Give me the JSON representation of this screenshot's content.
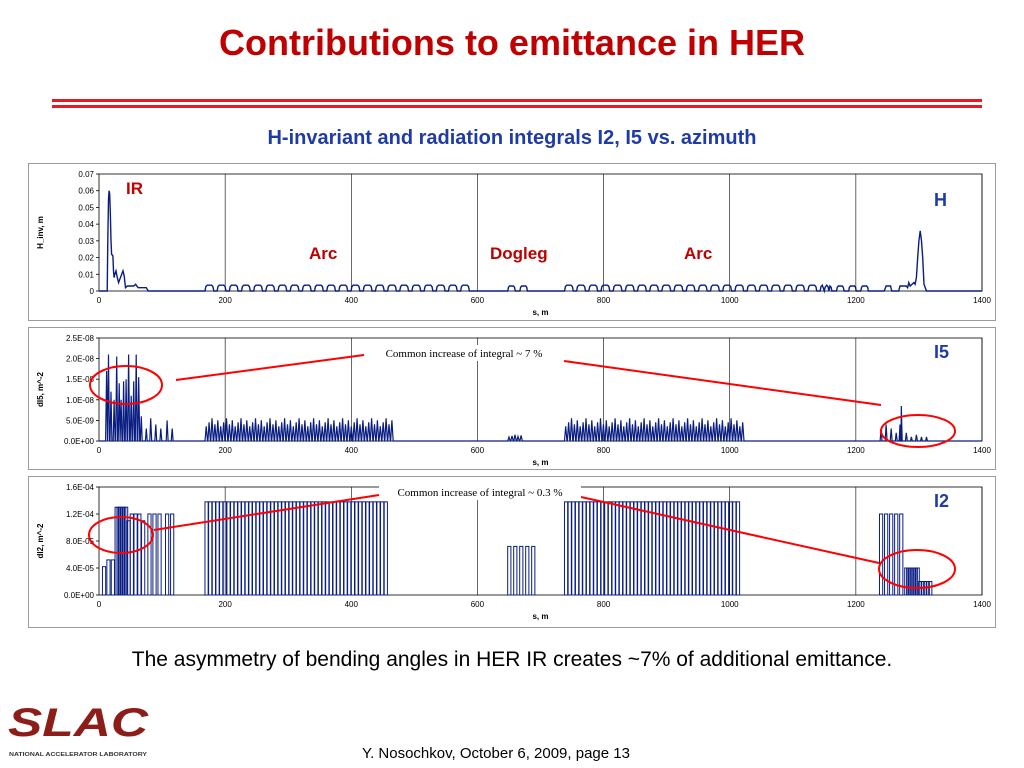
{
  "slide": {
    "title": "Contributions to emittance in HER",
    "subtitle": "H-invariant and radiation integrals I2, I5 vs. azimuth",
    "conclusion": "The asymmetry of bending angles in HER IR creates ~7% of additional emittance.",
    "footer": "Y. Nosochkov, October 6, 2009,  page 13",
    "logo_text": "SLAC",
    "logo_caption": "NATIONAL ACCELERATOR LABORATORY",
    "colors": {
      "title": "#c00000",
      "rule": "#e31b23",
      "subtitle": "#1f3ba8",
      "series": "#0a1e82",
      "annotation": "#ff0000"
    }
  },
  "chart_data": [
    {
      "type": "line",
      "id": "h",
      "xlabel": "s, m",
      "ylabel": "H_inv, m",
      "xlim": [
        0,
        1400
      ],
      "xticks": [
        "0",
        "200",
        "400",
        "600",
        "800",
        "1000",
        "1200",
        "1400"
      ],
      "ylim": [
        0,
        0.07
      ],
      "yticks": [
        "0",
        "0.01",
        "0.02",
        "0.03",
        "0.04",
        "0.05",
        "0.06",
        "0.07"
      ],
      "grid": "vertical",
      "series_label": "H",
      "annotations": [
        "IR",
        "Arc",
        "Dogleg",
        "Arc"
      ],
      "data": {
        "points": [
          [
            0,
            0
          ],
          [
            13,
            0
          ],
          [
            14,
            0.03
          ],
          [
            15,
            0.055
          ],
          [
            16,
            0.06
          ],
          [
            17,
            0.058
          ],
          [
            18,
            0.045
          ],
          [
            19,
            0.03
          ],
          [
            20,
            0.022
          ],
          [
            22,
            0.021
          ],
          [
            23,
            0.012
          ],
          [
            24,
            0.008
          ],
          [
            25,
            0.01
          ],
          [
            27,
            0.012
          ],
          [
            29,
            0.008
          ],
          [
            31,
            0.005
          ],
          [
            33,
            0.007
          ],
          [
            36,
            0.01
          ],
          [
            38,
            0.012
          ],
          [
            40,
            0.009
          ],
          [
            42,
            0.002
          ],
          [
            45,
            0.003
          ],
          [
            55,
            0.003
          ],
          [
            58,
            0.004
          ],
          [
            62,
            0.002
          ],
          [
            68,
            0.002
          ],
          [
            75,
            0.002
          ],
          [
            78,
            0
          ],
          [
            1230,
            0
          ],
          [
            1245,
            0
          ],
          [
            1248,
            0.003
          ],
          [
            1255,
            0.003
          ],
          [
            1257,
            0
          ],
          [
            1268,
            0
          ],
          [
            1270,
            0.003
          ],
          [
            1280,
            0.003
          ],
          [
            1282,
            0.002
          ],
          [
            1284,
            0.005
          ],
          [
            1286,
            0.003
          ],
          [
            1292,
            0.005
          ],
          [
            1294,
            0.004
          ],
          [
            1296,
            0.008
          ],
          [
            1298,
            0.02
          ],
          [
            1300,
            0.03
          ],
          [
            1302,
            0.036
          ],
          [
            1304,
            0.03
          ],
          [
            1306,
            0.02
          ],
          [
            1308,
            0.004
          ],
          [
            1312,
            0
          ],
          [
            1400,
            0
          ]
        ],
        "cells": [
          {
            "start": 168,
            "pitch": 19.3,
            "count": 22,
            "peak": 0.0035,
            "width": 14
          },
          {
            "start": 648,
            "pitch": 19.3,
            "count": 2,
            "peak": 0.003,
            "width": 12
          },
          {
            "start": 738,
            "pitch": 19.3,
            "count": 22,
            "peak": 0.0035,
            "width": 14
          },
          {
            "start": 1150,
            "pitch": 19.3,
            "count": 4,
            "peak": 0.003,
            "width": 12
          }
        ]
      }
    },
    {
      "type": "line",
      "id": "i5",
      "xlabel": "s, m",
      "ylabel": "dI5, m^-2",
      "xlim": [
        0,
        1400
      ],
      "xticks": [
        "0",
        "200",
        "400",
        "600",
        "800",
        "1000",
        "1200",
        "1400"
      ],
      "ylim": [
        0,
        2.5e-08
      ],
      "yticks": [
        "0.0E+00",
        "5.0E-09",
        "1.0E-08",
        "1.5E-08",
        "2.0E-08",
        "2.5E-08"
      ],
      "grid": "vertical",
      "series_label": "I5",
      "annotations": [
        "Common increase of integral ~ 7 %"
      ],
      "data": {
        "spikes": [
          [
            12,
            1.7e-08
          ],
          [
            15,
            2.1e-08
          ],
          [
            19,
            1.2e-08
          ],
          [
            24,
            1e-08
          ],
          [
            28,
            2.05e-08
          ],
          [
            32,
            1.4e-08
          ],
          [
            35,
            1e-08
          ],
          [
            39,
            1.45e-08
          ],
          [
            43,
            1.5e-08
          ],
          [
            47,
            2.1e-08
          ],
          [
            51,
            1.1e-08
          ],
          [
            55,
            1.45e-08
          ],
          [
            59,
            2.1e-08
          ],
          [
            63,
            1.55e-08
          ],
          [
            67,
            6e-09
          ],
          [
            75,
            3e-09
          ],
          [
            82,
            5.5e-09
          ],
          [
            90,
            4e-09
          ],
          [
            98,
            3e-09
          ],
          [
            108,
            5e-09
          ],
          [
            116,
            3e-09
          ],
          [
            1240,
            3e-09
          ],
          [
            1248,
            4e-09
          ],
          [
            1256,
            3e-09
          ],
          [
            1264,
            2e-09
          ],
          [
            1270,
            4e-09
          ],
          [
            1272,
            8.5e-09
          ],
          [
            1280,
            2e-09
          ],
          [
            1288,
            1e-09
          ],
          [
            1296,
            1.5e-09
          ],
          [
            1304,
            1e-09
          ],
          [
            1312,
            1e-09
          ]
        ],
        "cells": [
          {
            "start": 168,
            "pitch": 4.6,
            "count": 65,
            "peak": 5.5e-09,
            "width": 4
          },
          {
            "start": 648,
            "pitch": 4.8,
            "count": 5,
            "peak": 1.5e-09,
            "width": 4
          },
          {
            "start": 738,
            "pitch": 4.6,
            "count": 62,
            "peak": 5.5e-09,
            "width": 4
          }
        ]
      }
    },
    {
      "type": "bar",
      "id": "i2",
      "xlabel": "s, m",
      "ylabel": "dI2, m^-2",
      "xlim": [
        0,
        1400
      ],
      "xticks": [
        "0",
        "200",
        "400",
        "600",
        "800",
        "1000",
        "1200",
        "1400"
      ],
      "ylim": [
        0,
        0.00016
      ],
      "yticks": [
        "0.0E+00",
        "4.0E-05",
        "8.0E-05",
        "1.2E-04",
        "1.6E-04"
      ],
      "grid": "vertical",
      "series_label": "I2",
      "annotations": [
        "Common increase of integral ~ 0.3 %"
      ],
      "data": {
        "bars": [
          [
            8,
            4.2e-05
          ],
          [
            15,
            5.2e-05
          ],
          [
            22,
            5.2e-05
          ],
          [
            28,
            0.00013
          ],
          [
            31,
            0.00013
          ],
          [
            34,
            0.00013
          ],
          [
            37,
            0.00013
          ],
          [
            40,
            0.00013
          ],
          [
            43,
            0.00013
          ],
          [
            47,
            0.00011
          ],
          [
            52,
            0.00012
          ],
          [
            58,
            0.00012
          ],
          [
            64,
            0.00012
          ],
          [
            70,
            0.00011
          ],
          [
            80,
            0.00012
          ],
          [
            88,
            0.00012
          ],
          [
            96,
            0.00012
          ],
          [
            108,
            0.00012
          ],
          [
            116,
            0.00012
          ],
          [
            1240,
            0.00012
          ],
          [
            1248,
            0.00012
          ],
          [
            1256,
            0.00012
          ],
          [
            1264,
            0.00012
          ],
          [
            1272,
            0.00012
          ],
          [
            1280,
            4e-05
          ],
          [
            1283,
            4e-05
          ],
          [
            1286,
            4e-05
          ],
          [
            1289,
            4e-05
          ],
          [
            1292,
            4e-05
          ],
          [
            1295,
            4e-05
          ],
          [
            1298,
            4e-05
          ],
          [
            1302,
            2e-05
          ],
          [
            1306,
            2e-05
          ],
          [
            1310,
            2e-05
          ],
          [
            1314,
            2e-05
          ],
          [
            1318,
            2e-05
          ]
        ],
        "cells": [
          {
            "start": 168,
            "pitch": 5.8,
            "count": 50,
            "peak": 0.000138,
            "width": 3.5
          },
          {
            "start": 648,
            "pitch": 9.5,
            "count": 5,
            "peak": 7.2e-05,
            "width": 3.5
          },
          {
            "start": 738,
            "pitch": 5.8,
            "count": 48,
            "peak": 0.000138,
            "width": 3.5
          }
        ]
      }
    }
  ]
}
